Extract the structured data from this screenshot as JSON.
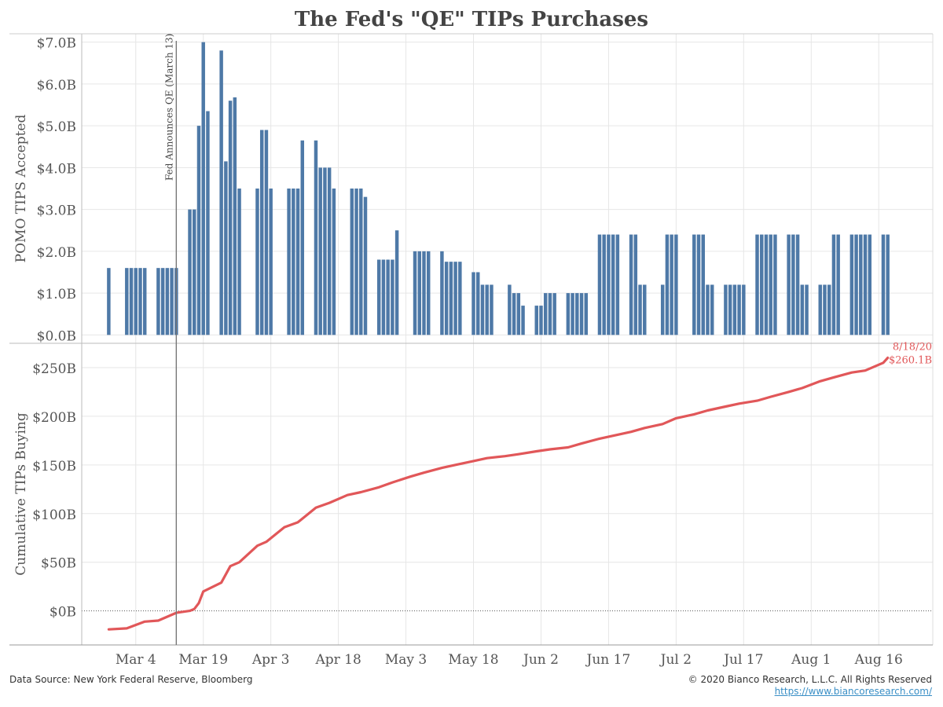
{
  "title": "The Fed's \"QE\" TIPs Purchases",
  "footer": {
    "source": "Data Source: New York Federal Reserve, Bloomberg",
    "copyright": "© 2020 Bianco Research, L.L.C. All Rights Reserved",
    "url": "https://www.biancoresearch.com/"
  },
  "colors": {
    "bar": "#4e79a7",
    "line": "#e15759",
    "grid": "#e6e6e6",
    "axis": "#666666"
  },
  "chart_data": [
    {
      "type": "bar",
      "ylabel": "POMO TIPS Accepted",
      "ylim": [
        -0.2,
        7.2
      ],
      "ytick_values": [
        0,
        1,
        2,
        3,
        4,
        5,
        6,
        7
      ],
      "ytick_labels": [
        "$0.0B",
        "$1.0B",
        "$2.0B",
        "$3.0B",
        "$4.0B",
        "$5.0B",
        "$6.0B",
        "$7.0B"
      ],
      "grid": true,
      "x": [
        "2020-02-27",
        "2020-03-02",
        "2020-03-03",
        "2020-03-04",
        "2020-03-05",
        "2020-03-06",
        "2020-03-09",
        "2020-03-10",
        "2020-03-11",
        "2020-03-12",
        "2020-03-13",
        "2020-03-16",
        "2020-03-17",
        "2020-03-18",
        "2020-03-19",
        "2020-03-20",
        "2020-03-23",
        "2020-03-24",
        "2020-03-25",
        "2020-03-26",
        "2020-03-27",
        "2020-03-31",
        "2020-04-01",
        "2020-04-02",
        "2020-04-03",
        "2020-04-07",
        "2020-04-08",
        "2020-04-09",
        "2020-04-10",
        "2020-04-13",
        "2020-04-14",
        "2020-04-15",
        "2020-04-16",
        "2020-04-17",
        "2020-04-21",
        "2020-04-22",
        "2020-04-23",
        "2020-04-24",
        "2020-04-27",
        "2020-04-28",
        "2020-04-29",
        "2020-04-30",
        "2020-05-01",
        "2020-05-05",
        "2020-05-06",
        "2020-05-07",
        "2020-05-08",
        "2020-05-11",
        "2020-05-12",
        "2020-05-13",
        "2020-05-14",
        "2020-05-15",
        "2020-05-18",
        "2020-05-19",
        "2020-05-20",
        "2020-05-21",
        "2020-05-22",
        "2020-05-26",
        "2020-05-27",
        "2020-05-28",
        "2020-05-29",
        "2020-06-01",
        "2020-06-02",
        "2020-06-03",
        "2020-06-04",
        "2020-06-05",
        "2020-06-08",
        "2020-06-09",
        "2020-06-10",
        "2020-06-11",
        "2020-06-12",
        "2020-06-15",
        "2020-06-16",
        "2020-06-17",
        "2020-06-18",
        "2020-06-19",
        "2020-06-22",
        "2020-06-23",
        "2020-06-24",
        "2020-06-25",
        "2020-06-29",
        "2020-06-30",
        "2020-07-01",
        "2020-07-02",
        "2020-07-06",
        "2020-07-07",
        "2020-07-08",
        "2020-07-09",
        "2020-07-10",
        "2020-07-13",
        "2020-07-14",
        "2020-07-15",
        "2020-07-16",
        "2020-07-17",
        "2020-07-20",
        "2020-07-21",
        "2020-07-22",
        "2020-07-23",
        "2020-07-24",
        "2020-07-27",
        "2020-07-28",
        "2020-07-29",
        "2020-07-30",
        "2020-07-31",
        "2020-08-03",
        "2020-08-04",
        "2020-08-05",
        "2020-08-06",
        "2020-08-07",
        "2020-08-10",
        "2020-08-11",
        "2020-08-12",
        "2020-08-13",
        "2020-08-14",
        "2020-08-17",
        "2020-08-18"
      ],
      "values": [
        1.6,
        1.6,
        1.6,
        1.6,
        1.6,
        1.6,
        1.6,
        1.6,
        1.6,
        1.6,
        1.6,
        3.0,
        3.0,
        5.0,
        7.0,
        5.35,
        6.8,
        4.15,
        5.6,
        5.68,
        3.5,
        3.5,
        4.9,
        4.9,
        3.5,
        3.5,
        3.5,
        3.5,
        4.65,
        4.65,
        4.0,
        4.0,
        4.0,
        3.5,
        3.5,
        3.5,
        3.5,
        3.3,
        1.8,
        1.8,
        1.8,
        1.8,
        2.5,
        2.0,
        2.0,
        2.0,
        2.0,
        2.0,
        1.75,
        1.75,
        1.75,
        1.75,
        1.5,
        1.5,
        1.2,
        1.2,
        1.2,
        1.2,
        1.0,
        1.0,
        0.7,
        0.7,
        0.7,
        1.0,
        1.0,
        1.0,
        1.0,
        1.0,
        1.0,
        1.0,
        1.0,
        2.4,
        2.4,
        2.4,
        2.4,
        2.4,
        2.4,
        2.4,
        1.2,
        1.2,
        1.2,
        2.4,
        2.4,
        2.4,
        2.4,
        2.4,
        2.4,
        1.2,
        1.2,
        1.2,
        1.2,
        1.2,
        1.2,
        1.2,
        2.4,
        2.4,
        2.4,
        2.4,
        2.4,
        2.4,
        2.4,
        2.4,
        1.2,
        1.2,
        1.2,
        1.2,
        1.2,
        2.4,
        2.4,
        2.4,
        2.4,
        2.4,
        2.4,
        2.4,
        2.4,
        2.4
      ]
    },
    {
      "type": "line",
      "ylabel": "Cumulative TIPs Buying",
      "ylim": [
        -35,
        275
      ],
      "ytick_values": [
        0,
        50,
        100,
        150,
        200,
        250
      ],
      "ytick_labels": [
        "$0B",
        "$50B",
        "$100B",
        "$150B",
        "$200B",
        "$250B"
      ],
      "grid": true,
      "series": [
        {
          "x": [
            "2020-02-27",
            "2020-03-02",
            "2020-03-06",
            "2020-03-09",
            "2020-03-13",
            "2020-03-16",
            "2020-03-17",
            "2020-03-18",
            "2020-03-19",
            "2020-03-23",
            "2020-03-25",
            "2020-03-27",
            "2020-03-31",
            "2020-04-02",
            "2020-04-06",
            "2020-04-09",
            "2020-04-13",
            "2020-04-16",
            "2020-04-20",
            "2020-04-23",
            "2020-04-27",
            "2020-04-30",
            "2020-05-04",
            "2020-05-07",
            "2020-05-11",
            "2020-05-14",
            "2020-05-18",
            "2020-05-21",
            "2020-05-25",
            "2020-05-28",
            "2020-06-01",
            "2020-06-04",
            "2020-06-08",
            "2020-06-11",
            "2020-06-15",
            "2020-06-18",
            "2020-06-22",
            "2020-06-25",
            "2020-06-29",
            "2020-07-02",
            "2020-07-06",
            "2020-07-09",
            "2020-07-13",
            "2020-07-16",
            "2020-07-20",
            "2020-07-23",
            "2020-07-27",
            "2020-07-30",
            "2020-08-03",
            "2020-08-06",
            "2020-08-10",
            "2020-08-13",
            "2020-08-17",
            "2020-08-18"
          ],
          "values": [
            -19,
            -18,
            -11,
            -10,
            -2,
            0,
            2,
            8,
            20,
            29,
            46,
            50,
            67,
            71,
            86,
            91,
            106,
            111,
            119,
            122,
            127,
            132,
            138,
            142,
            147,
            150,
            154,
            157,
            159,
            161,
            164,
            166,
            168,
            172,
            177,
            180,
            184,
            188,
            192,
            198,
            202,
            206,
            210,
            213,
            216,
            220,
            225,
            229,
            236,
            240,
            245,
            247,
            255,
            260.1
          ]
        }
      ],
      "end_label_date": "8/18/20",
      "end_label_value": "$260.1B"
    }
  ],
  "x_axis": {
    "range": [
      "2020-02-21",
      "2020-08-28"
    ],
    "tick_values": [
      "2020-03-04",
      "2020-03-19",
      "2020-04-03",
      "2020-04-18",
      "2020-05-03",
      "2020-05-18",
      "2020-06-02",
      "2020-06-17",
      "2020-07-02",
      "2020-07-17",
      "2020-08-01",
      "2020-08-16"
    ],
    "tick_labels": [
      "Mar 4",
      "Mar 19",
      "Apr 3",
      "Apr 18",
      "May 3",
      "May 18",
      "Jun 2",
      "Jun 17",
      "Jul 2",
      "Jul 17",
      "Aug 1",
      "Aug 16"
    ]
  },
  "annotation": {
    "date": "2020-03-13",
    "label": "Fed Announces QE (March 13)"
  }
}
